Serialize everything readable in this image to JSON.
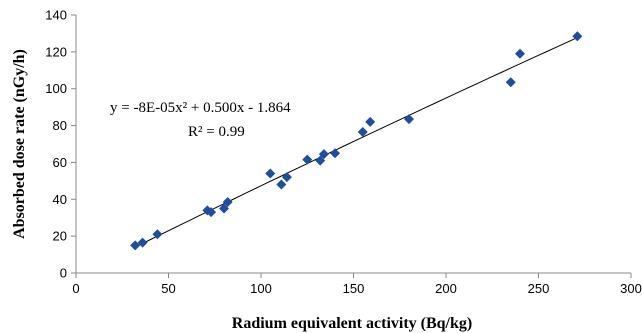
{
  "chart_data": {
    "type": "scatter",
    "title": "",
    "xlabel": "Radium equivalent activity (Bq/kg)",
    "ylabel": "Absorbed dose rate (nGy/h)",
    "xlim": [
      0,
      300
    ],
    "ylim": [
      0,
      140
    ],
    "xticks": [
      0,
      50,
      100,
      150,
      200,
      250,
      300
    ],
    "yticks": [
      0,
      20,
      40,
      60,
      80,
      100,
      120,
      140
    ],
    "grid": false,
    "legend": "none",
    "marker_color": "#1f4e9c",
    "trendline": {
      "type": "polynomial",
      "coefficients": [
        -8e-05,
        0.5,
        -1.864
      ],
      "equation_label": "y = -8E-05x² + 0.500x - 1.864",
      "r2_label": "R² = 0.99"
    },
    "series": [
      {
        "points": [
          [
            32,
            15
          ],
          [
            36,
            16.5
          ],
          [
            44,
            21
          ],
          [
            71,
            34
          ],
          [
            73,
            33
          ],
          [
            80,
            35
          ],
          [
            82,
            38.5
          ],
          [
            105,
            54
          ],
          [
            111,
            48
          ],
          [
            114,
            52
          ],
          [
            125,
            61.5
          ],
          [
            132,
            61
          ],
          [
            134,
            64.5
          ],
          [
            140,
            65
          ],
          [
            155,
            76.5
          ],
          [
            159,
            82
          ],
          [
            180,
            83.5
          ],
          [
            235,
            103.5
          ],
          [
            240,
            119
          ],
          [
            271,
            128.5
          ]
        ]
      }
    ]
  }
}
